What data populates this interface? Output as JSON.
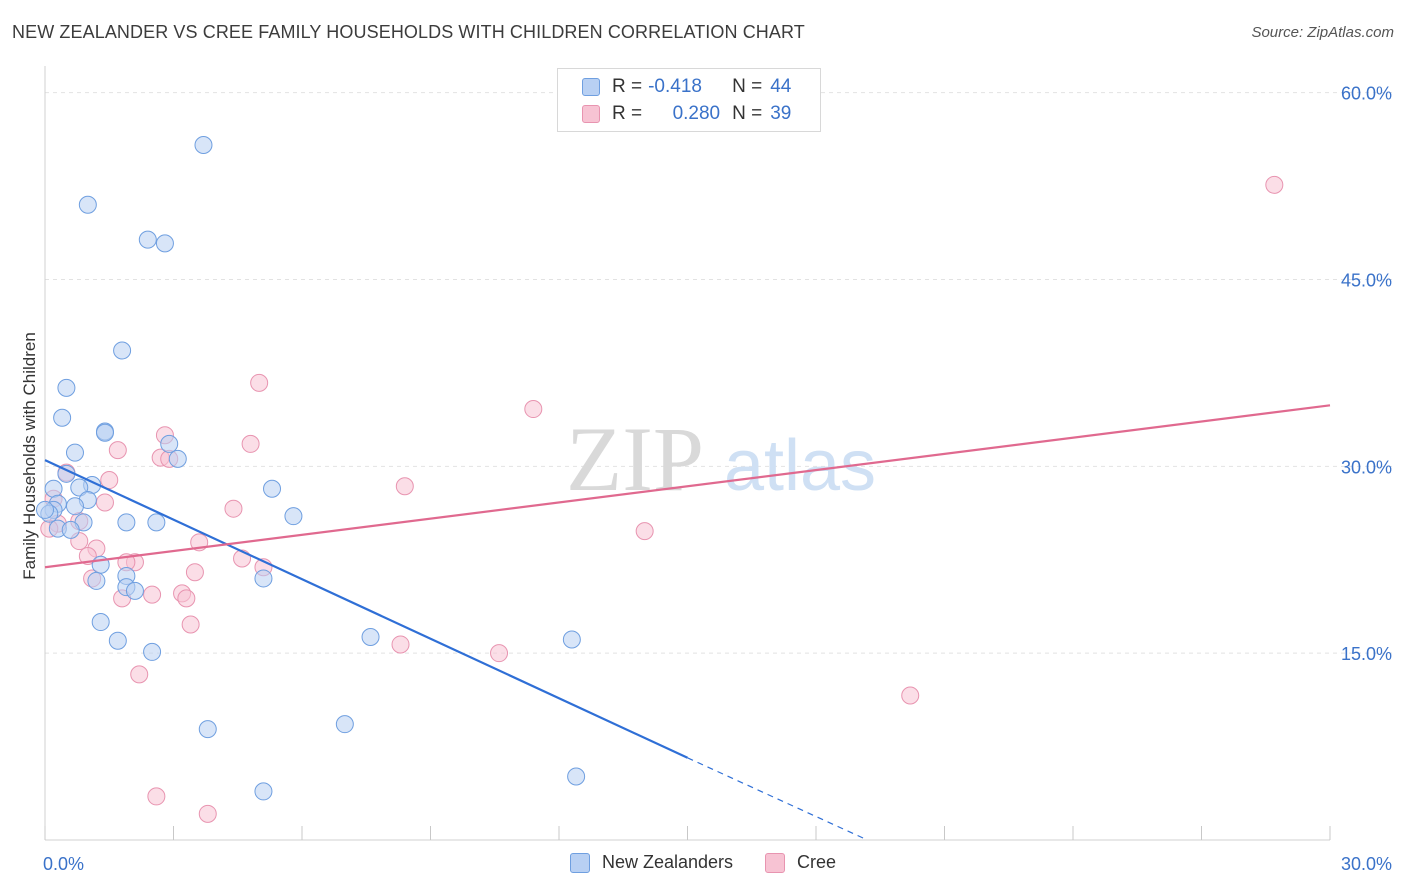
{
  "title": "NEW ZEALANDER VS CREE FAMILY HOUSEHOLDS WITH CHILDREN CORRELATION CHART",
  "source": "Source: ZipAtlas.com",
  "watermark": {
    "zip": "ZIP",
    "atlas": "atlas"
  },
  "legend": {
    "rows": [
      {
        "r_label": "R =",
        "r_value": "-0.418",
        "n_label": "N =",
        "n_value": "44"
      },
      {
        "r_label": "R =",
        "r_value": "0.280",
        "n_label": "N =",
        "n_value": "39"
      }
    ]
  },
  "colors": {
    "blue_fill": "#b8d0f3",
    "blue_stroke": "#6f9fe0",
    "blue_line": "#2f6fd6",
    "pink_fill": "#f7c3d3",
    "pink_stroke": "#e894b0",
    "pink_line": "#e0698f",
    "axis_text": "#3a72c9",
    "grid": "#e2e2e2"
  },
  "chart_data": {
    "type": "scatter",
    "title": "NEW ZEALANDER VS CREE FAMILY HOUSEHOLDS WITH CHILDREN CORRELATION CHART",
    "xlabel": "",
    "ylabel": "Family Households with Children",
    "xlim": [
      0,
      30
    ],
    "ylim": [
      0,
      61.5
    ],
    "x_tick_labels": [
      "0.0%",
      "30.0%"
    ],
    "y_ticks": [
      15,
      30,
      45,
      60
    ],
    "y_tick_labels": [
      "15.0%",
      "30.0%",
      "45.0%",
      "60.0%"
    ],
    "series": [
      {
        "name": "New Zealanders",
        "R": -0.418,
        "N": 44,
        "trend": {
          "x": [
            0,
            15
          ],
          "y": [
            30.5,
            6.6
          ],
          "dashed_to": [
            19.2,
            0
          ]
        },
        "points": [
          [
            3.7,
            55.8
          ],
          [
            1.0,
            51.0
          ],
          [
            2.4,
            48.2
          ],
          [
            2.8,
            47.9
          ],
          [
            1.8,
            39.3
          ],
          [
            0.5,
            36.3
          ],
          [
            0.4,
            33.9
          ],
          [
            1.4,
            32.8
          ],
          [
            1.4,
            32.7
          ],
          [
            2.9,
            31.8
          ],
          [
            0.7,
            31.1
          ],
          [
            3.1,
            30.6
          ],
          [
            0.5,
            29.4
          ],
          [
            1.1,
            28.5
          ],
          [
            0.8,
            28.3
          ],
          [
            0.2,
            28.2
          ],
          [
            5.3,
            28.2
          ],
          [
            1.0,
            27.3
          ],
          [
            0.3,
            27.0
          ],
          [
            0.7,
            26.8
          ],
          [
            0.2,
            26.5
          ],
          [
            0.1,
            26.2
          ],
          [
            5.8,
            26.0
          ],
          [
            0.9,
            25.5
          ],
          [
            1.9,
            25.5
          ],
          [
            2.6,
            25.5
          ],
          [
            0.3,
            25.0
          ],
          [
            0.6,
            24.9
          ],
          [
            1.3,
            22.1
          ],
          [
            1.9,
            21.2
          ],
          [
            5.1,
            21.0
          ],
          [
            1.2,
            20.8
          ],
          [
            1.9,
            20.3
          ],
          [
            2.1,
            20.0
          ],
          [
            1.3,
            17.5
          ],
          [
            1.7,
            16.0
          ],
          [
            2.5,
            15.1
          ],
          [
            7.6,
            16.3
          ],
          [
            12.3,
            16.1
          ],
          [
            3.8,
            8.9
          ],
          [
            7.0,
            9.3
          ],
          [
            12.4,
            5.1
          ],
          [
            5.1,
            3.9
          ],
          [
            0.0,
            26.5
          ]
        ]
      },
      {
        "name": "Cree",
        "R": 0.28,
        "N": 39,
        "trend": {
          "x": [
            0,
            30
          ],
          "y": [
            21.9,
            34.9
          ]
        },
        "points": [
          [
            28.7,
            52.6
          ],
          [
            5.0,
            36.7
          ],
          [
            11.4,
            34.6
          ],
          [
            2.8,
            32.5
          ],
          [
            4.8,
            31.8
          ],
          [
            1.7,
            31.3
          ],
          [
            2.7,
            30.7
          ],
          [
            2.9,
            30.6
          ],
          [
            0.5,
            29.5
          ],
          [
            1.5,
            28.9
          ],
          [
            8.4,
            28.4
          ],
          [
            0.2,
            27.4
          ],
          [
            1.4,
            27.1
          ],
          [
            4.4,
            26.6
          ],
          [
            0.8,
            25.6
          ],
          [
            0.3,
            25.4
          ],
          [
            14.0,
            24.8
          ],
          [
            3.6,
            23.9
          ],
          [
            0.8,
            24.0
          ],
          [
            1.2,
            23.4
          ],
          [
            1.0,
            22.8
          ],
          [
            4.6,
            22.6
          ],
          [
            2.1,
            22.3
          ],
          [
            1.9,
            22.3
          ],
          [
            5.1,
            21.9
          ],
          [
            3.5,
            21.5
          ],
          [
            1.1,
            21.0
          ],
          [
            3.2,
            19.8
          ],
          [
            2.5,
            19.7
          ],
          [
            1.8,
            19.4
          ],
          [
            3.3,
            19.4
          ],
          [
            3.4,
            17.3
          ],
          [
            8.3,
            15.7
          ],
          [
            10.6,
            15.0
          ],
          [
            2.2,
            13.3
          ],
          [
            20.2,
            11.6
          ],
          [
            2.6,
            3.5
          ],
          [
            3.8,
            2.1
          ],
          [
            0.1,
            25.0
          ]
        ]
      }
    ]
  },
  "bottom_legend": [
    "New Zealanders",
    "Cree"
  ]
}
